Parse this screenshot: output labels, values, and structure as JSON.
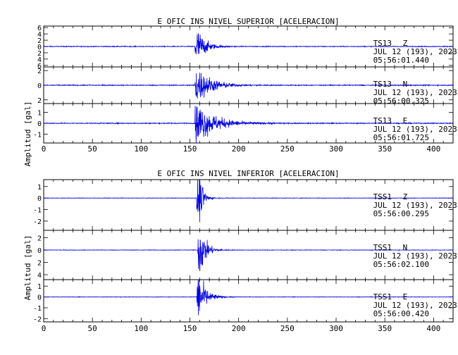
{
  "chart_data": [
    {
      "type": "line",
      "title": "E OFIC INS NIVEL SUPERIOR [ACELERACION]",
      "ylabel": "Amplitud [gal]",
      "xlabel": "",
      "xlim": [
        0,
        420
      ],
      "x_ticks": [
        0,
        50,
        100,
        150,
        200,
        250,
        300,
        350,
        400
      ],
      "line_color": "#0000dd",
      "grid": false,
      "series": [
        {
          "station": "TS13",
          "component": "Z",
          "date": "JUL 12 (193), 2023",
          "time": "05:56:01.440",
          "ylim": [
            -6.5,
            6.5
          ],
          "y_ticks": [
            -6,
            -4,
            -2,
            0,
            2,
            4,
            6
          ],
          "y_tick_labels": [
            "6",
            "4",
            "2",
            "0",
            "2",
            "4",
            "6"
          ],
          "onset": 155,
          "peak": 6.3,
          "decay": 8,
          "noise": 0.12
        },
        {
          "station": "TS13",
          "component": "N",
          "date": "JUL 12 (193), 2023",
          "time": "05:56:00.325",
          "ylim": [
            -2.5,
            2.5
          ],
          "y_ticks": [
            -2,
            0,
            2
          ],
          "y_tick_labels": [
            "2",
            "0",
            "2"
          ],
          "onset": 155,
          "peak": 2.6,
          "decay": 14,
          "noise": 0.06
        },
        {
          "station": "TS13",
          "component": "E",
          "date": "JUL 12 (193), 2023",
          "time": "05:56:01.725",
          "ylim": [
            -1.8,
            1.8
          ],
          "y_ticks": [
            -1,
            0,
            1
          ],
          "y_tick_labels": [
            "-1",
            "0",
            "1"
          ],
          "onset": 155,
          "peak": 1.9,
          "decay": 18,
          "noise": 0.04
        }
      ]
    },
    {
      "type": "line",
      "title": "E OFIC INS NIVEL INFERIOR [ACELERACION]",
      "ylabel": "Amplitud [gal]",
      "xlabel": "",
      "xlim": [
        0,
        420
      ],
      "x_ticks": [
        0,
        50,
        100,
        150,
        200,
        250,
        300,
        350,
        400
      ],
      "line_color": "#0000dd",
      "grid": false,
      "series": [
        {
          "station": "TSS1",
          "component": "Z",
          "date": "JUL 12 (193), 2023",
          "time": "05:56:00.295",
          "ylim": [
            -2.8,
            1.6
          ],
          "y_ticks": [
            -2,
            -1,
            0,
            1
          ],
          "y_tick_labels": [
            "-2",
            "-1",
            "0",
            "1"
          ],
          "onset": 157,
          "peak": 2.6,
          "decay": 4,
          "noise": 0.02
        },
        {
          "station": "TSS1",
          "component": "N",
          "date": "JUL 12 (193), 2023",
          "time": "05:56:02.100",
          "ylim": [
            -4.8,
            3.2
          ],
          "y_ticks": [
            -4,
            -2,
            0,
            2
          ],
          "y_tick_labels": [
            "4",
            "2",
            "0",
            "2"
          ],
          "onset": 158,
          "peak": 4.5,
          "decay": 6,
          "noise": 0.04
        },
        {
          "station": "TSS1",
          "component": "E",
          "date": "JUL 12 (193), 2023",
          "time": "05:56:00.420",
          "ylim": [
            -2.3,
            1.6
          ],
          "y_ticks": [
            -2,
            -1,
            0,
            1
          ],
          "y_tick_labels": [
            "-2",
            "-1",
            "0",
            "1"
          ],
          "onset": 157,
          "peak": 2.3,
          "decay": 7,
          "noise": 0.02
        }
      ]
    }
  ]
}
